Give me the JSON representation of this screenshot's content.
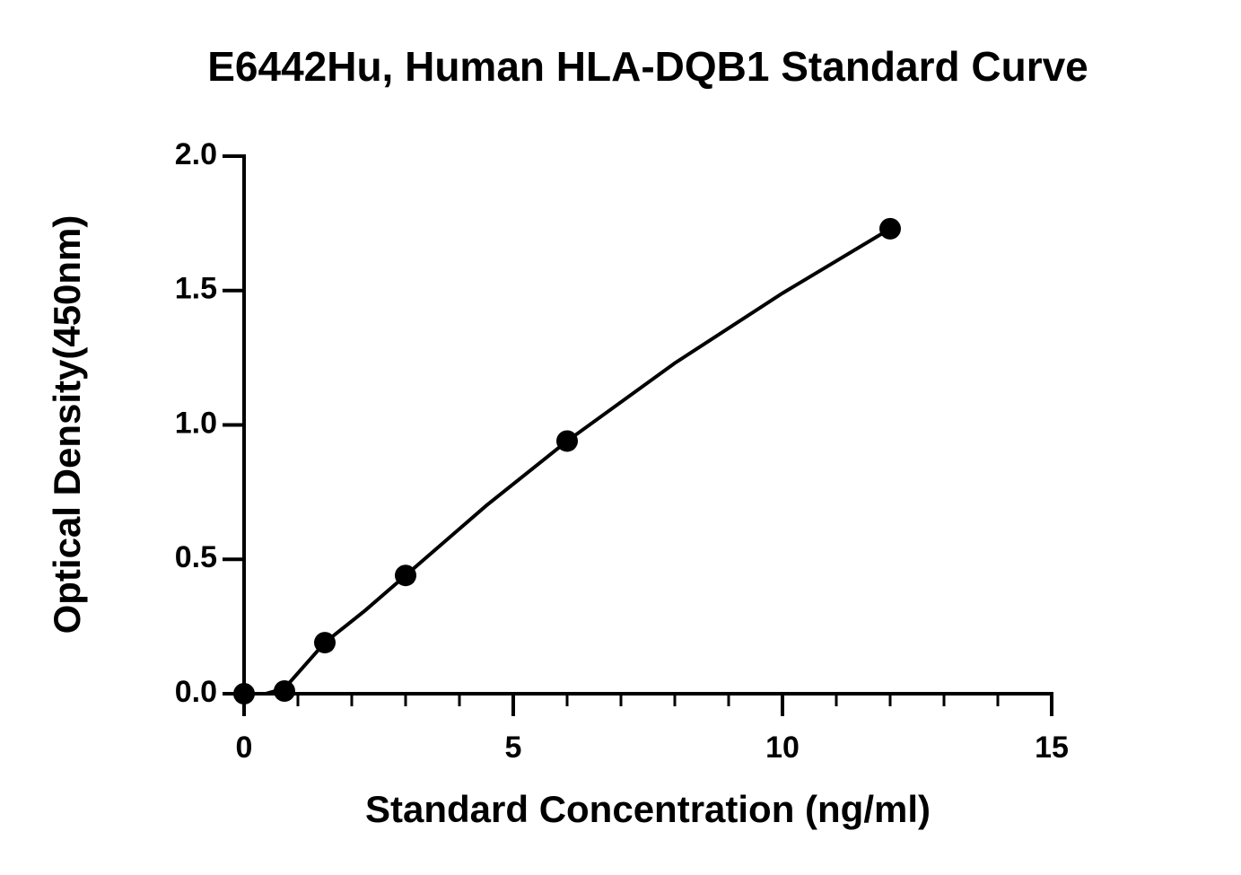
{
  "chart_data": {
    "type": "scatter",
    "title": "E6442Hu, Human HLA-DQB1 Standard Curve",
    "xlabel": "Standard Concentration (ng/ml)",
    "ylabel": "Optical Density(450nm)",
    "x": [
      0,
      0.75,
      1.5,
      3,
      6,
      12
    ],
    "values": [
      0.0,
      0.01,
      0.19,
      0.44,
      0.94,
      1.73
    ],
    "color": "#000000",
    "fit": {
      "x": [
        0.4,
        0.75,
        1.5,
        2.25,
        3,
        4.5,
        6,
        8,
        10,
        12
      ],
      "values": [
        0.0,
        0.02,
        0.19,
        0.31,
        0.44,
        0.7,
        0.94,
        1.23,
        1.49,
        1.73
      ]
    },
    "xlim": [
      0,
      15
    ],
    "xticks": [
      0,
      5,
      10,
      15
    ],
    "xminorticks": [
      1,
      2,
      3,
      4,
      6,
      7,
      8,
      9,
      11,
      12,
      13,
      14
    ],
    "ylim": [
      0,
      2.0
    ],
    "yticks": [
      {
        "value": 0,
        "label": "0.0"
      },
      {
        "value": 0.5,
        "label": "0.5"
      },
      {
        "value": 1.0,
        "label": "1.0"
      },
      {
        "value": 1.5,
        "label": "1.5"
      },
      {
        "value": 2.0,
        "label": "2.0"
      }
    ]
  }
}
